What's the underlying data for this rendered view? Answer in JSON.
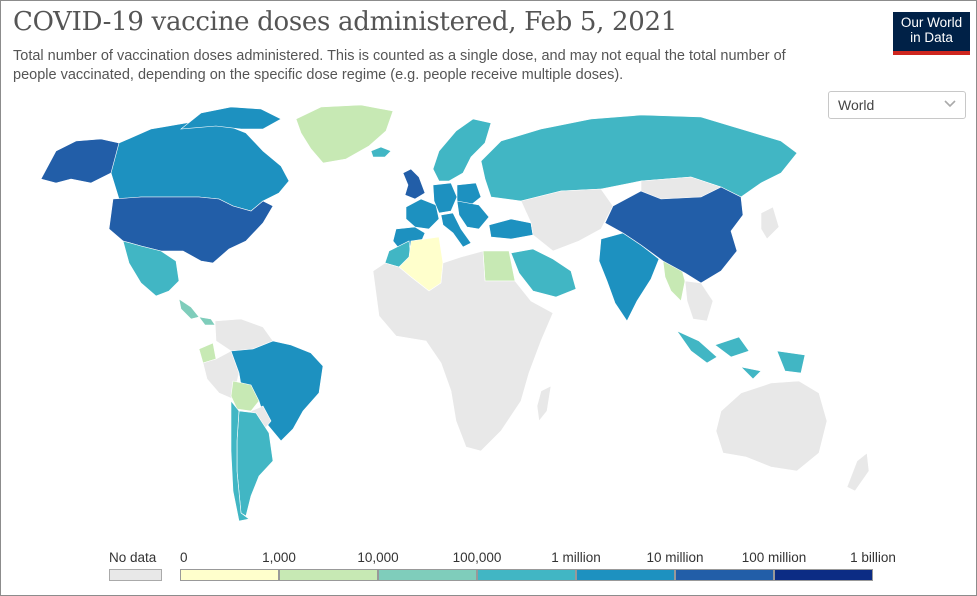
{
  "title": "COVID-19 vaccine doses administered, Feb 5, 2021",
  "subtitle": "Total number of vaccination doses administered. This is counted as a single dose, and may not equal the total number of people vaccinated, depending on the specific dose regime (e.g. people receive multiple doses).",
  "logo": {
    "line1": "Our World",
    "line2": "in Data"
  },
  "region_select": {
    "value": "World",
    "icon": "chevron-down-icon"
  },
  "legend": {
    "no_data_label": "No data",
    "no_data_color": "#e8e8e8",
    "ticks": [
      "0",
      "1,000",
      "10,000",
      "100,000",
      "1 million",
      "10 million",
      "100 million",
      "1 billion"
    ],
    "colors": [
      "#ffffcc",
      "#c7e9b4",
      "#7fcdbb",
      "#41b6c4",
      "#1d91c0",
      "#225ea8",
      "#0c2c84"
    ]
  },
  "map": {
    "countries": [
      {
        "name": "United States",
        "bin": 5
      },
      {
        "name": "Canada",
        "bin": 4
      },
      {
        "name": "Alaska",
        "bin": 5
      },
      {
        "name": "Greenland",
        "bin": 1
      },
      {
        "name": "Mexico",
        "bin": 3
      },
      {
        "name": "Costa Rica",
        "bin": 2
      },
      {
        "name": "Panama",
        "bin": 2
      },
      {
        "name": "Brazil",
        "bin": 4
      },
      {
        "name": "Argentina",
        "bin": 3
      },
      {
        "name": "Chile",
        "bin": 3
      },
      {
        "name": "Bolivia",
        "bin": 1
      },
      {
        "name": "Ecuador",
        "bin": 1
      },
      {
        "name": "Russia",
        "bin": 3
      },
      {
        "name": "China",
        "bin": 5
      },
      {
        "name": "India",
        "bin": 4
      },
      {
        "name": "Myanmar",
        "bin": 1
      },
      {
        "name": "Indonesia",
        "bin": 3
      },
      {
        "name": "Saudi Arabia",
        "bin": 3
      },
      {
        "name": "Turkey",
        "bin": 4
      },
      {
        "name": "Algeria",
        "bin": 0
      },
      {
        "name": "Egypt",
        "bin": 1
      },
      {
        "name": "Morocco",
        "bin": 3
      },
      {
        "name": "United Kingdom",
        "bin": 5
      },
      {
        "name": "Germany",
        "bin": 4
      },
      {
        "name": "France",
        "bin": 4
      },
      {
        "name": "Spain",
        "bin": 4
      },
      {
        "name": "Italy",
        "bin": 4
      },
      {
        "name": "Poland",
        "bin": 4
      },
      {
        "name": "Scandinavia",
        "bin": 3
      },
      {
        "name": "Iceland",
        "bin": 3
      }
    ]
  }
}
